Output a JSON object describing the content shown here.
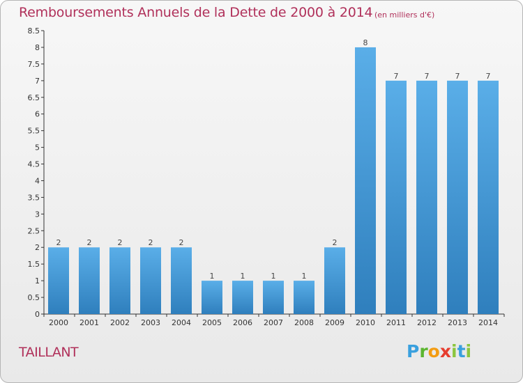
{
  "title": "Remboursements Annuels de la Dette de 2000 à 2014",
  "subtitle": "(en milliers d'€)",
  "commune": "TAILLANT",
  "logo": {
    "text": "Proxiti"
  },
  "colors": {
    "title": "#b0305a",
    "bar_top": "#5aaee8",
    "bar_bottom": "#2f7fbd",
    "axis": "#333333"
  },
  "chart_data": {
    "type": "bar",
    "title": "Remboursements Annuels de la Dette de 2000 à 2014",
    "subtitle": "(en milliers d'€)",
    "xlabel": "",
    "ylabel": "",
    "ylim": [
      0,
      8.5
    ],
    "y_ticks": [
      "0",
      "0.5",
      "1",
      "1.5",
      "2",
      "2.5",
      "3",
      "3.5",
      "4",
      "4.5",
      "5",
      "5.5",
      "6",
      "6.5",
      "7",
      "7.5",
      "8",
      "8.5"
    ],
    "categories": [
      "2000",
      "2001",
      "2002",
      "2003",
      "2004",
      "2005",
      "2006",
      "2007",
      "2008",
      "2009",
      "2010",
      "2011",
      "2012",
      "2013",
      "2014"
    ],
    "values": [
      2,
      2,
      2,
      2,
      2,
      1,
      1,
      1,
      1,
      2,
      8,
      7,
      7,
      7,
      7
    ],
    "labels": [
      "2",
      "2",
      "2",
      "2",
      "2",
      "1",
      "1",
      "1",
      "1",
      "2",
      "8",
      "7",
      "7",
      "7",
      "7"
    ],
    "grid": false,
    "legend": "none"
  }
}
